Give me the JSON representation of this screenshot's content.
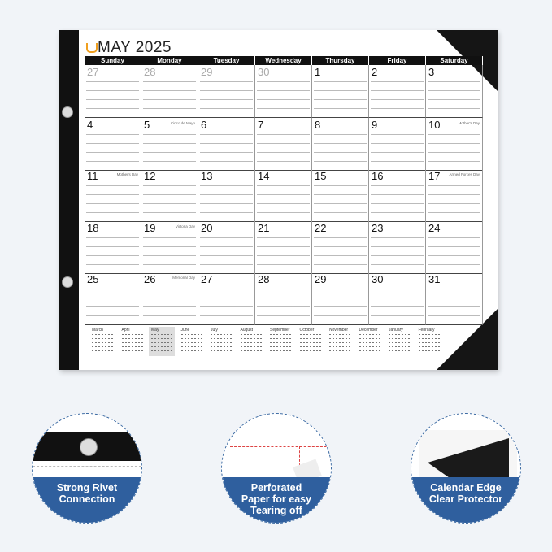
{
  "calendar": {
    "title": "MAY 2025",
    "weekdays": [
      "Sunday",
      "Monday",
      "Tuesday",
      "Wednesday",
      "Thursday",
      "Friday",
      "Saturday"
    ],
    "weeks": [
      [
        {
          "day": "27",
          "muted": true
        },
        {
          "day": "28",
          "muted": true
        },
        {
          "day": "29",
          "muted": true
        },
        {
          "day": "30",
          "muted": true
        },
        {
          "day": "1"
        },
        {
          "day": "2"
        },
        {
          "day": "3"
        }
      ],
      [
        {
          "day": "4"
        },
        {
          "day": "5",
          "note": "Cinco de Mayo"
        },
        {
          "day": "6"
        },
        {
          "day": "7"
        },
        {
          "day": "8"
        },
        {
          "day": "9"
        },
        {
          "day": "10",
          "note": "Mother's Day"
        }
      ],
      [
        {
          "day": "11",
          "note": "Mother's Day"
        },
        {
          "day": "12"
        },
        {
          "day": "13"
        },
        {
          "day": "14"
        },
        {
          "day": "15"
        },
        {
          "day": "16"
        },
        {
          "day": "17",
          "note": "Armed Forces Day"
        }
      ],
      [
        {
          "day": "18"
        },
        {
          "day": "19",
          "note": "Victoria Day"
        },
        {
          "day": "20"
        },
        {
          "day": "21"
        },
        {
          "day": "22"
        },
        {
          "day": "23"
        },
        {
          "day": "24"
        }
      ],
      [
        {
          "day": "25"
        },
        {
          "day": "26",
          "note": "Memorial Day"
        },
        {
          "day": "27"
        },
        {
          "day": "28"
        },
        {
          "day": "29"
        },
        {
          "day": "30"
        },
        {
          "day": "31"
        }
      ]
    ],
    "mini_months": [
      "March",
      "April",
      "May",
      "June",
      "July",
      "August",
      "September",
      "October",
      "November",
      "December",
      "January",
      "February"
    ]
  },
  "features": [
    {
      "label": "Strong Rivet Connection"
    },
    {
      "label": "Perforated Paper for easy Tearing off"
    },
    {
      "label": "Calendar Edge Clear Protector"
    }
  ]
}
